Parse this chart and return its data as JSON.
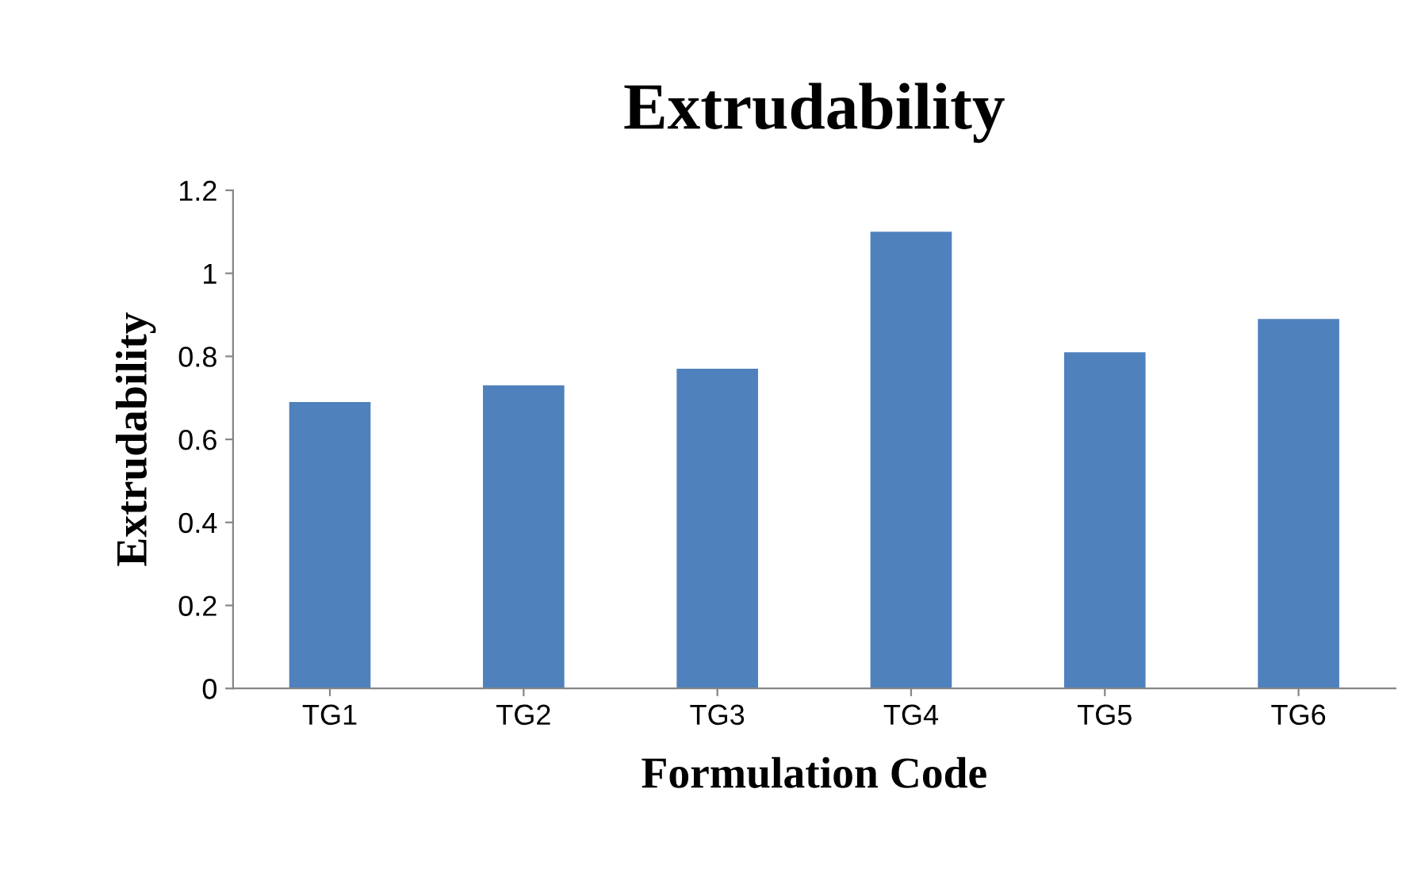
{
  "chart_data": {
    "type": "bar",
    "title": "Extrudability",
    "xlabel": "Formulation Code",
    "ylabel": "Extrudability",
    "categories": [
      "TG1",
      "TG2",
      "TG3",
      "TG4",
      "TG5",
      "TG6"
    ],
    "values": [
      0.69,
      0.73,
      0.77,
      1.1,
      0.81,
      0.89
    ],
    "color": "#4f81bd",
    "ylim": [
      0,
      1.2
    ],
    "yticks": [
      {
        "value": 0,
        "label": "0"
      },
      0.2,
      0.4,
      0.6,
      0.8,
      {
        "value": 1,
        "label": "1"
      },
      1.2
    ],
    "grid": false,
    "legend": false
  }
}
